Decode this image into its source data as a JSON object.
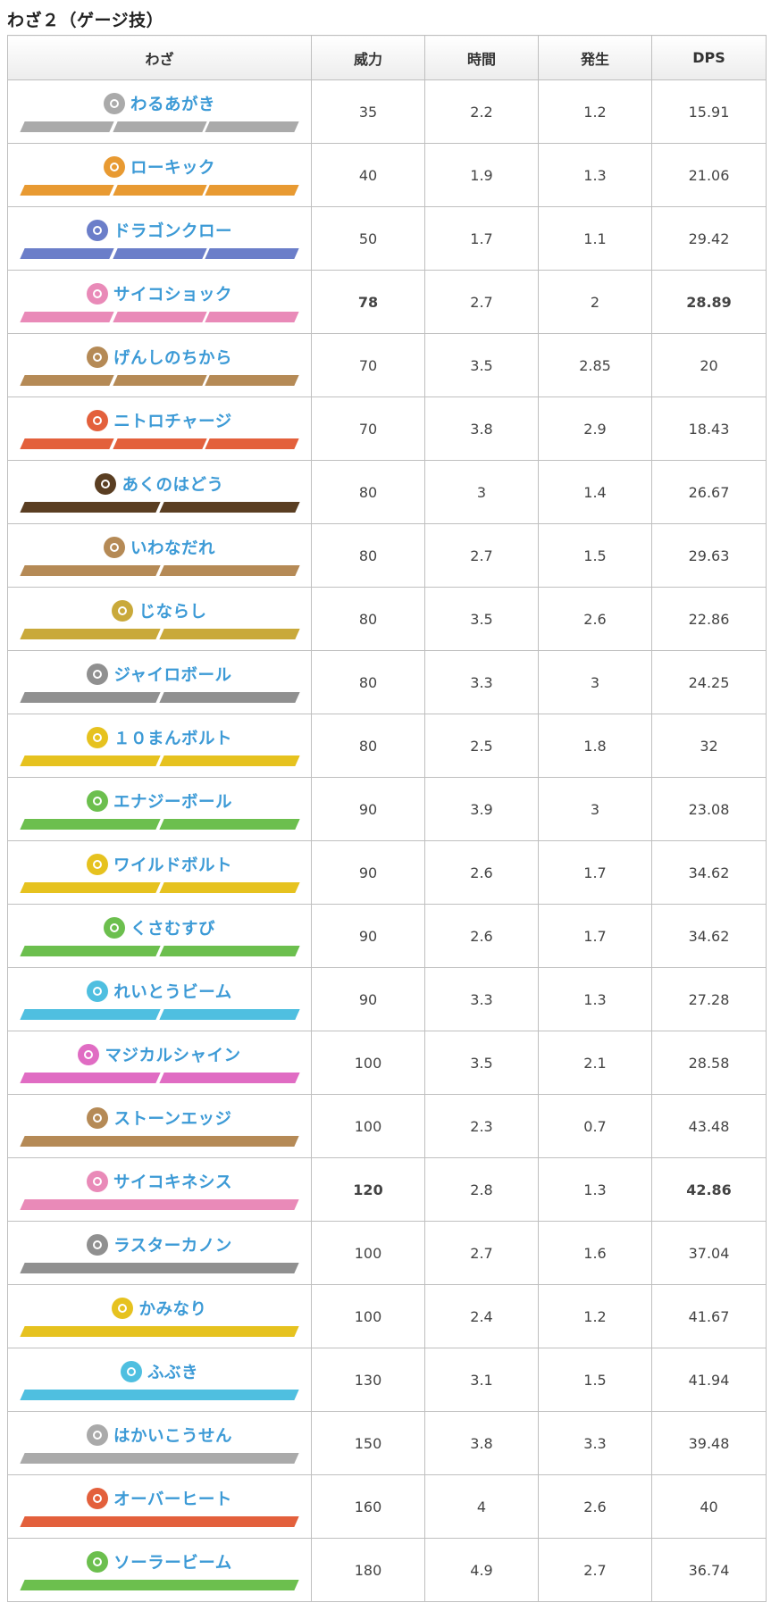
{
  "page_title": "わざ２（ゲージ技）",
  "table": {
    "headers": [
      "わざ",
      "威力",
      "時間",
      "発生",
      "DPS"
    ],
    "rows": [
      {
        "name": "わるあがき",
        "type_icon": "normal-icon",
        "color": "#aaaaaa",
        "segments": 3,
        "power": "35",
        "duration": "2.2",
        "startup": "1.2",
        "dps": "15.91",
        "highlight": false
      },
      {
        "name": "ローキック",
        "type_icon": "fighting-icon",
        "color": "#e89a32",
        "segments": 3,
        "power": "40",
        "duration": "1.9",
        "startup": "1.3",
        "dps": "21.06",
        "highlight": false
      },
      {
        "name": "ドラゴンクロー",
        "type_icon": "dragon-icon",
        "color": "#6b7ec9",
        "segments": 3,
        "power": "50",
        "duration": "1.7",
        "startup": "1.1",
        "dps": "29.42",
        "highlight": false
      },
      {
        "name": "サイコショック",
        "type_icon": "psychic-icon",
        "color": "#e98ab8",
        "segments": 3,
        "power": "78",
        "duration": "2.7",
        "startup": "2",
        "dps": "28.89",
        "highlight": true
      },
      {
        "name": "げんしのちから",
        "type_icon": "rock-icon",
        "color": "#b58a56",
        "segments": 3,
        "power": "70",
        "duration": "3.5",
        "startup": "2.85",
        "dps": "20",
        "highlight": false
      },
      {
        "name": "ニトロチャージ",
        "type_icon": "fire-icon",
        "color": "#e3603c",
        "segments": 3,
        "power": "70",
        "duration": "3.8",
        "startup": "2.9",
        "dps": "18.43",
        "highlight": false
      },
      {
        "name": "あくのはどう",
        "type_icon": "dark-icon",
        "color": "#5a3e22",
        "segments": 2,
        "power": "80",
        "duration": "3",
        "startup": "1.4",
        "dps": "26.67",
        "highlight": false
      },
      {
        "name": "いわなだれ",
        "type_icon": "rock-icon",
        "color": "#b58a56",
        "segments": 2,
        "power": "80",
        "duration": "2.7",
        "startup": "1.5",
        "dps": "29.63",
        "highlight": false
      },
      {
        "name": "じならし",
        "type_icon": "ground-icon",
        "color": "#c9a93a",
        "segments": 2,
        "power": "80",
        "duration": "3.5",
        "startup": "2.6",
        "dps": "22.86",
        "highlight": false
      },
      {
        "name": "ジャイロボール",
        "type_icon": "steel-icon",
        "color": "#909090",
        "segments": 2,
        "power": "80",
        "duration": "3.3",
        "startup": "3",
        "dps": "24.25",
        "highlight": false
      },
      {
        "name": "１０まんボルト",
        "type_icon": "electric-icon",
        "color": "#e6c21f",
        "segments": 2,
        "power": "80",
        "duration": "2.5",
        "startup": "1.8",
        "dps": "32",
        "highlight": false
      },
      {
        "name": "エナジーボール",
        "type_icon": "grass-icon",
        "color": "#6cbf4e",
        "segments": 2,
        "power": "90",
        "duration": "3.9",
        "startup": "3",
        "dps": "23.08",
        "highlight": false
      },
      {
        "name": "ワイルドボルト",
        "type_icon": "electric-icon",
        "color": "#e6c21f",
        "segments": 2,
        "power": "90",
        "duration": "2.6",
        "startup": "1.7",
        "dps": "34.62",
        "highlight": false
      },
      {
        "name": "くさむすび",
        "type_icon": "grass-icon",
        "color": "#6cbf4e",
        "segments": 2,
        "power": "90",
        "duration": "2.6",
        "startup": "1.7",
        "dps": "34.62",
        "highlight": false
      },
      {
        "name": "れいとうビーム",
        "type_icon": "ice-icon",
        "color": "#4fbfe0",
        "segments": 2,
        "power": "90",
        "duration": "3.3",
        "startup": "1.3",
        "dps": "27.28",
        "highlight": false
      },
      {
        "name": "マジカルシャイン",
        "type_icon": "fairy-icon",
        "color": "#e06cc3",
        "segments": 2,
        "power": "100",
        "duration": "3.5",
        "startup": "2.1",
        "dps": "28.58",
        "highlight": false
      },
      {
        "name": "ストーンエッジ",
        "type_icon": "rock-icon",
        "color": "#b58a56",
        "segments": 1,
        "power": "100",
        "duration": "2.3",
        "startup": "0.7",
        "dps": "43.48",
        "highlight": false
      },
      {
        "name": "サイコキネシス",
        "type_icon": "psychic-icon",
        "color": "#e98ab8",
        "segments": 1,
        "power": "120",
        "duration": "2.8",
        "startup": "1.3",
        "dps": "42.86",
        "highlight": true
      },
      {
        "name": "ラスターカノン",
        "type_icon": "steel-icon",
        "color": "#909090",
        "segments": 1,
        "power": "100",
        "duration": "2.7",
        "startup": "1.6",
        "dps": "37.04",
        "highlight": false
      },
      {
        "name": "かみなり",
        "type_icon": "electric-icon",
        "color": "#e6c21f",
        "segments": 1,
        "power": "100",
        "duration": "2.4",
        "startup": "1.2",
        "dps": "41.67",
        "highlight": false
      },
      {
        "name": "ふぶき",
        "type_icon": "ice-icon",
        "color": "#4fbfe0",
        "segments": 1,
        "power": "130",
        "duration": "3.1",
        "startup": "1.5",
        "dps": "41.94",
        "highlight": false
      },
      {
        "name": "はかいこうせん",
        "type_icon": "normal-icon",
        "color": "#aaaaaa",
        "segments": 1,
        "power": "150",
        "duration": "3.8",
        "startup": "3.3",
        "dps": "39.48",
        "highlight": false
      },
      {
        "name": "オーバーヒート",
        "type_icon": "fire-icon",
        "color": "#e3603c",
        "segments": 1,
        "power": "160",
        "duration": "4",
        "startup": "2.6",
        "dps": "40",
        "highlight": false
      },
      {
        "name": "ソーラービーム",
        "type_icon": "grass-icon",
        "color": "#6cbf4e",
        "segments": 1,
        "power": "180",
        "duration": "4.9",
        "startup": "2.7",
        "dps": "36.74",
        "highlight": false
      }
    ]
  }
}
